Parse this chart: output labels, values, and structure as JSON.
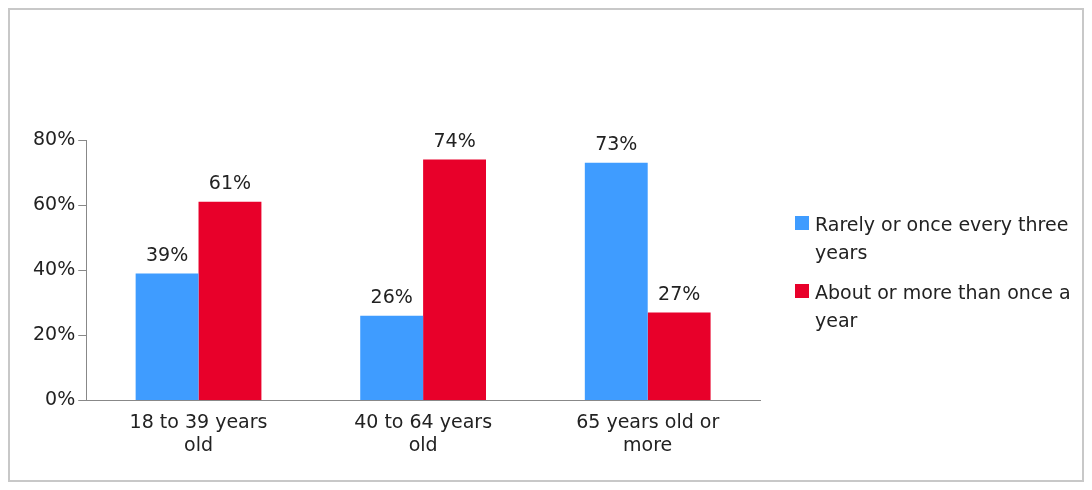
{
  "chart_data": {
    "type": "bar",
    "categories": [
      "18 to 39 years old",
      "40 to 64 years old",
      "65 years old or more"
    ],
    "series": [
      {
        "name": "Rarely or once every three years",
        "color": "#3f9cff",
        "values": [
          39,
          26,
          73
        ],
        "value_labels": [
          "39%",
          "26%",
          "73%"
        ]
      },
      {
        "name": "About or more than once a year",
        "color": "#e8002a",
        "values": [
          61,
          74,
          27
        ],
        "value_labels": [
          "61%",
          "74%",
          "27%"
        ]
      }
    ],
    "ylim": [
      0,
      80
    ],
    "yticks": [
      {
        "value": 0,
        "label": "0%"
      },
      {
        "value": 20,
        "label": "20%"
      },
      {
        "value": 40,
        "label": "40%"
      },
      {
        "value": 60,
        "label": "60%"
      },
      {
        "value": 80,
        "label": "80%"
      }
    ],
    "grid": false,
    "legend": "right"
  }
}
